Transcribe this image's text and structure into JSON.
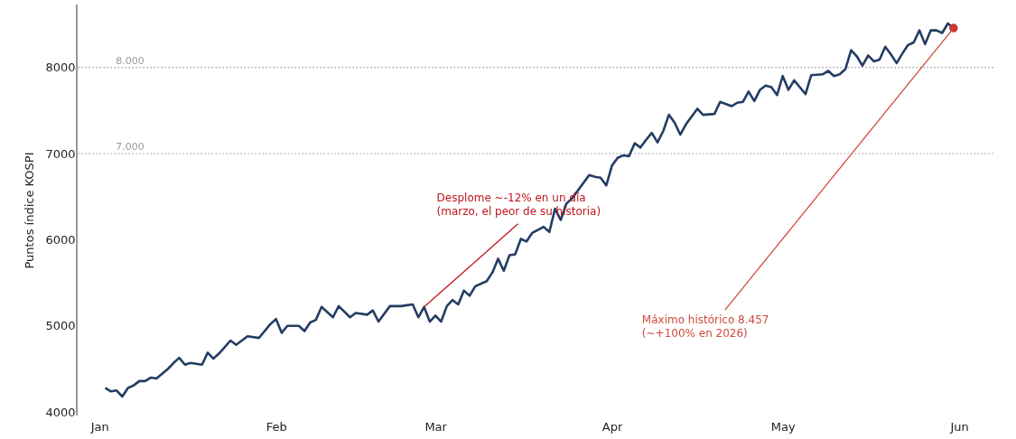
{
  "chart_data": {
    "type": "line",
    "ylabel": "Puntos índice KOSPI",
    "x": [
      "2026-01-02",
      "2026-01-03",
      "2026-01-04",
      "2026-01-05",
      "2026-01-06",
      "2026-01-07",
      "2026-01-08",
      "2026-01-09",
      "2026-01-10",
      "2026-01-11",
      "2026-01-13",
      "2026-01-14",
      "2026-01-15",
      "2026-01-16",
      "2026-01-17",
      "2026-01-19",
      "2026-01-20",
      "2026-01-21",
      "2026-01-22",
      "2026-01-24",
      "2026-01-25",
      "2026-01-26",
      "2026-01-27",
      "2026-01-29",
      "2026-01-30",
      "2026-01-31",
      "2026-02-01",
      "2026-02-02",
      "2026-02-03",
      "2026-02-05",
      "2026-02-06",
      "2026-02-07",
      "2026-02-08",
      "2026-02-09",
      "2026-02-11",
      "2026-02-12",
      "2026-02-14",
      "2026-02-15",
      "2026-02-17",
      "2026-02-18",
      "2026-02-19",
      "2026-02-21",
      "2026-02-23",
      "2026-02-24",
      "2026-02-25",
      "2026-02-26",
      "2026-02-27",
      "2026-02-28",
      "2026-03-01",
      "2026-03-02",
      "2026-03-03",
      "2026-03-04",
      "2026-03-05",
      "2026-03-06",
      "2026-03-07",
      "2026-03-08",
      "2026-03-10",
      "2026-03-11",
      "2026-03-12",
      "2026-03-13",
      "2026-03-14",
      "2026-03-15",
      "2026-03-16",
      "2026-03-17",
      "2026-03-18",
      "2026-03-20",
      "2026-03-21",
      "2026-03-22",
      "2026-03-23",
      "2026-03-24",
      "2026-03-25",
      "2026-03-26",
      "2026-03-28",
      "2026-03-29",
      "2026-03-30",
      "2026-03-31",
      "2026-04-01",
      "2026-04-02",
      "2026-04-03",
      "2026-04-04",
      "2026-04-05",
      "2026-04-06",
      "2026-04-07",
      "2026-04-08",
      "2026-04-09",
      "2026-04-10",
      "2026-04-11",
      "2026-04-12",
      "2026-04-13",
      "2026-04-14",
      "2026-04-16",
      "2026-04-17",
      "2026-04-19",
      "2026-04-20",
      "2026-04-22",
      "2026-04-23",
      "2026-04-24",
      "2026-04-25",
      "2026-04-26",
      "2026-04-27",
      "2026-04-28",
      "2026-04-29",
      "2026-04-30",
      "2026-05-01",
      "2026-05-02",
      "2026-05-03",
      "2026-05-05",
      "2026-05-06",
      "2026-05-08",
      "2026-05-09",
      "2026-05-10",
      "2026-05-11",
      "2026-05-12",
      "2026-05-13",
      "2026-05-14",
      "2026-05-15",
      "2026-05-16",
      "2026-05-17",
      "2026-05-18",
      "2026-05-19",
      "2026-05-20",
      "2026-05-21",
      "2026-05-22",
      "2026-05-23",
      "2026-05-24",
      "2026-05-25",
      "2026-05-26",
      "2026-05-27",
      "2026-05-28",
      "2026-05-29",
      "2026-05-30",
      "2026-05-31"
    ],
    "series": [
      {
        "color": "#233d63",
        "values": [
          4280,
          4240,
          4250,
          4180,
          4280,
          4310,
          4360,
          4360,
          4400,
          4390,
          4500,
          4570,
          4630,
          4550,
          4570,
          4550,
          4690,
          4620,
          4680,
          4830,
          4780,
          4830,
          4880,
          4860,
          4940,
          5020,
          5080,
          4920,
          5000,
          5000,
          4940,
          5040,
          5070,
          5220,
          5100,
          5230,
          5100,
          5150,
          5130,
          5180,
          5050,
          5230,
          5230,
          5240,
          5250,
          5100,
          5220,
          5050,
          5120,
          5050,
          5230,
          5300,
          5250,
          5410,
          5350,
          5460,
          5520,
          5620,
          5780,
          5640,
          5820,
          5830,
          6010,
          5980,
          6080,
          6150,
          6090,
          6360,
          6230,
          6420,
          6480,
          6570,
          6750,
          6730,
          6720,
          6630,
          6860,
          6950,
          6980,
          6970,
          7120,
          7070,
          7160,
          7240,
          7130,
          7260,
          7450,
          7360,
          7220,
          7340,
          7520,
          7450,
          7460,
          7600,
          7550,
          7590,
          7600,
          7720,
          7610,
          7740,
          7790,
          7770,
          7680,
          7900,
          7740,
          7850,
          7690,
          7910,
          7920,
          7960,
          7900,
          7920,
          7980,
          8200,
          8130,
          8020,
          8140,
          8070,
          8090,
          8240,
          8150,
          8050,
          8160,
          8260,
          8290,
          8430,
          8270,
          8430,
          8430,
          8400,
          8510,
          8457
        ]
      },
      {
        "type": "scatter",
        "color": "#c8372d",
        "x": [
          "2026-05-31"
        ],
        "values": [
          8457
        ],
        "marker": "circle"
      }
    ],
    "xlim": [
      "2025-12-28",
      "2026-06-07"
    ],
    "xticks": [
      {
        "value": "2026-01-01",
        "label": "Jan"
      },
      {
        "value": "2026-02-01",
        "label": "Feb"
      },
      {
        "value": "2026-03-01",
        "label": "Mar"
      },
      {
        "value": "2026-04-01",
        "label": "Apr"
      },
      {
        "value": "2026-05-01",
        "label": "May"
      },
      {
        "value": "2026-06-01",
        "label": "Jun"
      }
    ],
    "ylim": [
      3960,
      8730
    ],
    "yticks": [
      4000,
      5000,
      6000,
      7000,
      8000
    ],
    "ref_lines": [
      {
        "axis": "y",
        "value": 7000,
        "label": "7.000",
        "color": "#999999",
        "line_style": "dotted"
      },
      {
        "axis": "y",
        "value": 8000,
        "label": "8.000",
        "color": "#999999",
        "line_style": "dotted"
      }
    ],
    "annotations": [
      {
        "text": "Desplome ~-12% en un día\n(marzo, el peor de su historia)",
        "x": "2026-02-27",
        "y": 5220
      },
      {
        "text": "Máximo histórico 8.457\n(~+100% en 2026)",
        "x": "2026-05-31",
        "y": 8457
      }
    ],
    "grid": false,
    "line_style": "solid",
    "marker": "none"
  }
}
